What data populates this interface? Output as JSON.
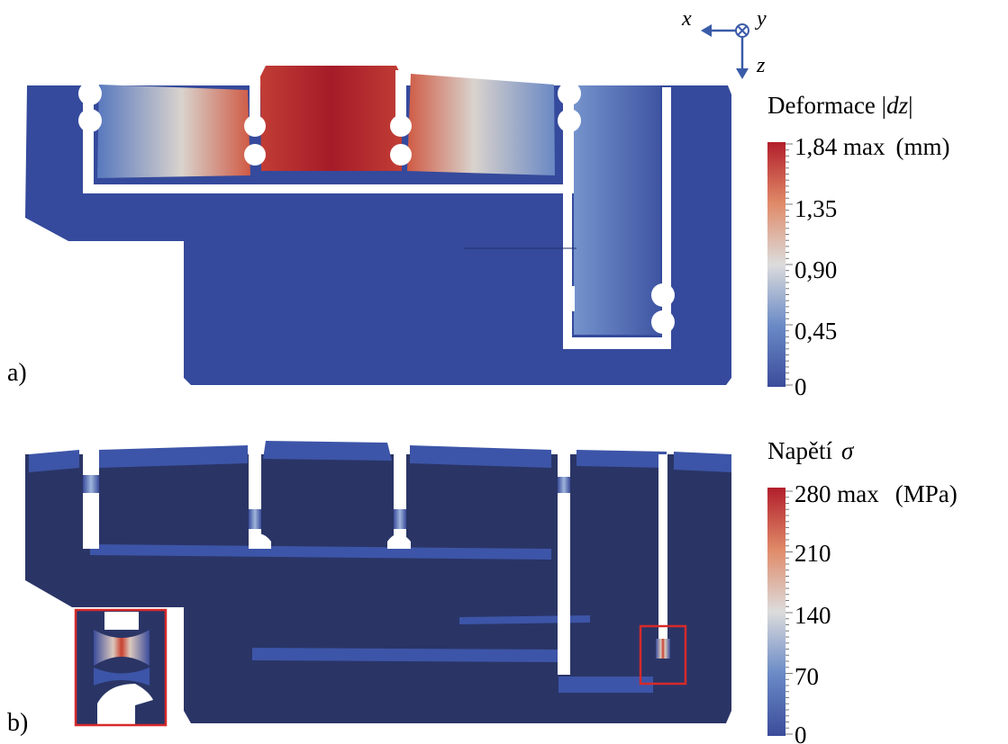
{
  "axes_triad": {
    "x_label": "x",
    "y_label": "y",
    "z_label": "z",
    "color": "#3a5ba8"
  },
  "panel_a": {
    "label": "a)",
    "colorbar": {
      "title_text": "Deformace |",
      "title_var": "dz",
      "title_end": "|",
      "max_value": "1,84",
      "max_word": "max",
      "unit": "(mm)",
      "ticks": [
        "1,35",
        "0,90",
        "0,45",
        "0"
      ]
    }
  },
  "panel_b": {
    "label": "b)",
    "colorbar": {
      "title_text": "Napětí",
      "title_var": "σ",
      "max_value": "280",
      "max_word": "max",
      "unit": "(MPa)",
      "ticks": [
        "210",
        "140",
        "70",
        "0"
      ]
    },
    "inset_border_color": "#d62a2a"
  },
  "colors": {
    "base_blue": "#354a9c",
    "dark_navy": "#2a3566",
    "max_red": "#b21e2b",
    "mid_gray": "#d8d4d0",
    "light_blue": "#8aa2d4"
  }
}
